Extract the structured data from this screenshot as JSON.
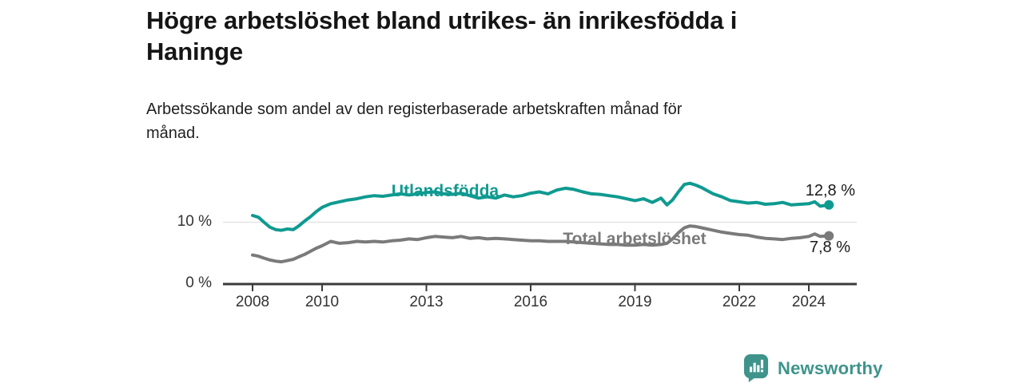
{
  "header": {
    "title_line1": "Högre arbetslöshet bland utrikes- än inrikesfödda i",
    "title_line2": "Haninge",
    "subtitle_line1": "Arbetssökande som andel av den registerbaserade arbetskraften månad för",
    "subtitle_line2": "månad."
  },
  "chart_data": {
    "type": "line",
    "title": "Högre arbetslöshet bland utrikes- än inrikesfödda i Haninge",
    "subtitle": "Arbetssökande som andel av den registerbaserade arbetskraften månad för månad.",
    "x_unit": "year (monthly data)",
    "x_range": [
      2007.15,
      2025.38
    ],
    "y_range": [
      0,
      17.55
    ],
    "grid": "single horizontal gridline at 10 %",
    "grid_y_values": [
      10
    ],
    "legend": "inline series labels on chart",
    "x_ticks": [
      {
        "value": 2008,
        "label": "2008"
      },
      {
        "value": 2010,
        "label": "2010"
      },
      {
        "value": 2013,
        "label": "2013"
      },
      {
        "value": 2016,
        "label": "2016"
      },
      {
        "value": 2019,
        "label": "2019"
      },
      {
        "value": 2022,
        "label": "2022"
      },
      {
        "value": 2024,
        "label": "2024"
      }
    ],
    "y_ticks": [
      {
        "value": 0,
        "label": "0 %"
      },
      {
        "value": 10,
        "label": "10 %"
      }
    ],
    "x": [
      2008.0,
      2008.17,
      2008.33,
      2008.5,
      2008.67,
      2008.83,
      2009.0,
      2009.17,
      2009.33,
      2009.5,
      2009.67,
      2009.83,
      2010.0,
      2010.25,
      2010.5,
      2010.75,
      2011.0,
      2011.25,
      2011.5,
      2011.75,
      2012.0,
      2012.25,
      2012.5,
      2012.75,
      2013.0,
      2013.25,
      2013.5,
      2013.75,
      2014.0,
      2014.25,
      2014.5,
      2014.75,
      2015.0,
      2015.25,
      2015.5,
      2015.75,
      2016.0,
      2016.25,
      2016.5,
      2016.75,
      2017.0,
      2017.25,
      2017.5,
      2017.75,
      2018.0,
      2018.25,
      2018.5,
      2018.75,
      2019.0,
      2019.25,
      2019.5,
      2019.75,
      2019.92,
      2020.08,
      2020.25,
      2020.42,
      2020.58,
      2020.75,
      2020.92,
      2021.08,
      2021.25,
      2021.5,
      2021.75,
      2022.0,
      2022.25,
      2022.5,
      2022.75,
      2023.0,
      2023.25,
      2023.5,
      2023.75,
      2024.0,
      2024.17,
      2024.33,
      2024.58
    ],
    "series": [
      {
        "name": "Utlandsfödda",
        "color": "#0f9a90",
        "end_label": "12,8 %",
        "end_value": 12.8,
        "values": [
          11.1,
          10.8,
          10.0,
          9.2,
          8.8,
          8.7,
          8.9,
          8.8,
          9.4,
          10.2,
          10.9,
          11.7,
          12.4,
          13.0,
          13.3,
          13.6,
          13.8,
          14.1,
          14.3,
          14.2,
          14.4,
          14.6,
          14.4,
          14.6,
          14.8,
          14.9,
          14.6,
          14.5,
          14.7,
          14.3,
          13.9,
          14.1,
          13.9,
          14.4,
          14.1,
          14.3,
          14.7,
          14.9,
          14.6,
          15.2,
          15.5,
          15.3,
          14.9,
          14.6,
          14.5,
          14.3,
          14.1,
          13.8,
          13.5,
          13.8,
          13.2,
          13.9,
          12.8,
          13.6,
          14.9,
          16.1,
          16.3,
          16.0,
          15.6,
          15.1,
          14.6,
          14.1,
          13.5,
          13.3,
          13.1,
          13.2,
          12.9,
          13.0,
          13.2,
          12.8,
          12.9,
          13.0,
          13.3,
          12.6,
          12.8
        ]
      },
      {
        "name": "Total arbetslöshet",
        "color": "#7a7a7a",
        "end_label": "7,8 %",
        "end_value": 7.8,
        "values": [
          4.7,
          4.5,
          4.2,
          3.9,
          3.7,
          3.6,
          3.8,
          4.0,
          4.4,
          4.8,
          5.3,
          5.8,
          6.2,
          6.9,
          6.6,
          6.7,
          6.9,
          6.8,
          6.9,
          6.8,
          7.0,
          7.1,
          7.3,
          7.2,
          7.5,
          7.7,
          7.6,
          7.5,
          7.7,
          7.4,
          7.5,
          7.3,
          7.4,
          7.3,
          7.2,
          7.1,
          7.0,
          7.0,
          6.9,
          6.9,
          6.9,
          6.8,
          6.7,
          6.6,
          6.5,
          6.4,
          6.4,
          6.3,
          6.3,
          6.4,
          6.3,
          6.4,
          6.6,
          7.3,
          8.3,
          9.1,
          9.4,
          9.3,
          9.1,
          8.9,
          8.7,
          8.4,
          8.2,
          8.0,
          7.9,
          7.6,
          7.4,
          7.3,
          7.2,
          7.4,
          7.5,
          7.7,
          8.1,
          7.7,
          7.8
        ]
      }
    ]
  },
  "branding": {
    "name": "Newsworthy",
    "color": "#3e948b",
    "icon": "bar-chart-speech-bubble"
  },
  "colors": {
    "background": "#ffffff",
    "title": "#151515",
    "axis_text": "#333333",
    "axis_line": "#3b3b3b",
    "gridline": "#e3e3e3"
  }
}
